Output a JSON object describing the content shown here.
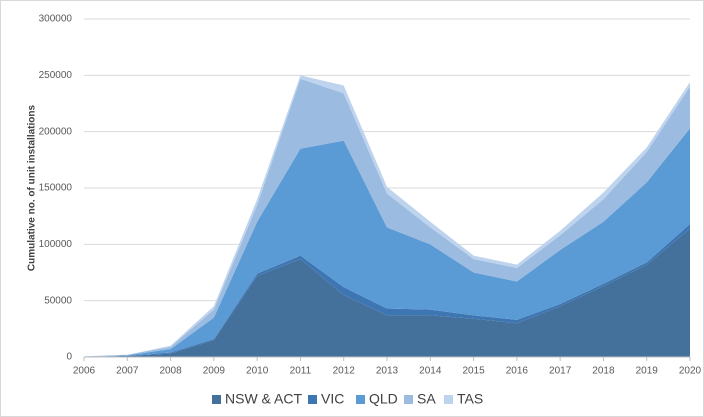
{
  "chart_data": {
    "type": "stacked_area",
    "y_label": "Cumulative no. of unit installations",
    "x": [
      2006,
      2007,
      2008,
      2009,
      2010,
      2011,
      2012,
      2013,
      2014,
      2015,
      2016,
      2017,
      2018,
      2019,
      2020
    ],
    "xlim": [
      2006,
      2020
    ],
    "xticks": [
      2006,
      2007,
      2008,
      2009,
      2010,
      2011,
      2012,
      2013,
      2014,
      2015,
      2016,
      2017,
      2018,
      2019,
      2020
    ],
    "ylim": [
      0,
      300000
    ],
    "yticks": [
      0,
      50000,
      100000,
      150000,
      200000,
      250000,
      300000
    ],
    "grid": true,
    "legend": "bottom",
    "series": [
      {
        "name": "NSW & ACT",
        "color": "#44719c",
        "values": [
          0,
          1000,
          3000,
          15000,
          72000,
          87000,
          55000,
          37000,
          37000,
          34000,
          30000,
          45000,
          63000,
          82000,
          114000
        ]
      },
      {
        "name": "VIC",
        "color": "#3d76b3",
        "values": [
          0,
          0,
          1000,
          1000,
          2000,
          3000,
          7000,
          6000,
          5000,
          3000,
          3000,
          2000,
          2000,
          2000,
          4000
        ]
      },
      {
        "name": "QLD",
        "color": "#5b9bd5",
        "values": [
          0,
          500,
          3000,
          19000,
          46000,
          95000,
          130000,
          72000,
          58000,
          38000,
          34000,
          48000,
          55000,
          71000,
          85000
        ]
      },
      {
        "name": "SA",
        "color": "#9bbbe0",
        "values": [
          500,
          500,
          2000,
          7000,
          15000,
          62000,
          42000,
          30000,
          15000,
          12000,
          12000,
          13000,
          20000,
          27000,
          37000
        ]
      },
      {
        "name": "TAS",
        "color": "#bdd3ee",
        "values": [
          0,
          0,
          1000,
          3000,
          5000,
          3000,
          7000,
          6000,
          5000,
          3000,
          3000,
          4000,
          6000,
          4000,
          4000
        ]
      }
    ]
  }
}
